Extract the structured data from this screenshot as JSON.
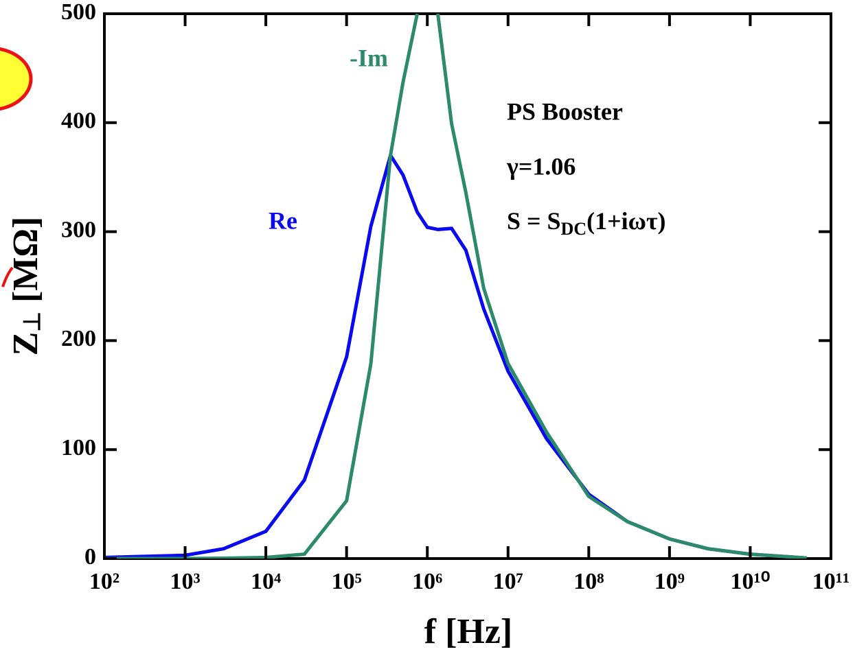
{
  "chart_data": {
    "type": "line",
    "xlabel": "f [Hz]",
    "ylabel": [
      "Z",
      "⊥",
      " [MΩ]"
    ],
    "annotations": [
      "PS Booster",
      "γ=1.06",
      [
        "S = S",
        "DC",
        "(1+iωτ)"
      ]
    ],
    "xscale": "log",
    "xlim": [
      100,
      100000000000
    ],
    "xticks": [
      {
        "value": 100,
        "label": "10²"
      },
      {
        "value": 1000,
        "label": "10³"
      },
      {
        "value": 10000,
        "label": "10⁴"
      },
      {
        "value": 100000,
        "label": "10⁵"
      },
      {
        "value": 1000000,
        "label": "10⁶"
      },
      {
        "value": 10000000,
        "label": "10⁷"
      },
      {
        "value": 100000000,
        "label": "10⁸"
      },
      {
        "value": 1000000000,
        "label": "10⁹"
      },
      {
        "value": 10000000000,
        "label": "10¹⁰"
      },
      {
        "value": 100000000000,
        "label": "10¹¹"
      }
    ],
    "ylim": [
      0,
      500
    ],
    "yticks": [
      0,
      100,
      200,
      300,
      400,
      500
    ],
    "x": [
      100,
      1000,
      3000,
      10000,
      30000,
      100000,
      200000,
      350000,
      500000,
      750000,
      1000000,
      1350000,
      2000000,
      3000000,
      5000000,
      10000000,
      30000000,
      100000000,
      300000000,
      1000000000,
      3000000000,
      10000000000,
      50000000000
    ],
    "series": [
      {
        "name": "Re",
        "color": "#0a0af0",
        "values": [
          1,
          3,
          9,
          25,
          72,
          185,
          305,
          370,
          352,
          318,
          304,
          302,
          303,
          283,
          229,
          172,
          110,
          59,
          34,
          18,
          9,
          4,
          0.5
        ]
      },
      {
        "name": "-Im",
        "color": "#2a8a6a",
        "values": [
          0,
          0,
          0.3,
          1,
          4,
          53,
          179,
          370,
          437,
          500,
          null,
          500,
          399,
          336,
          248,
          179,
          116,
          57,
          34,
          18,
          9,
          4,
          0.5
        ]
      }
    ]
  }
}
